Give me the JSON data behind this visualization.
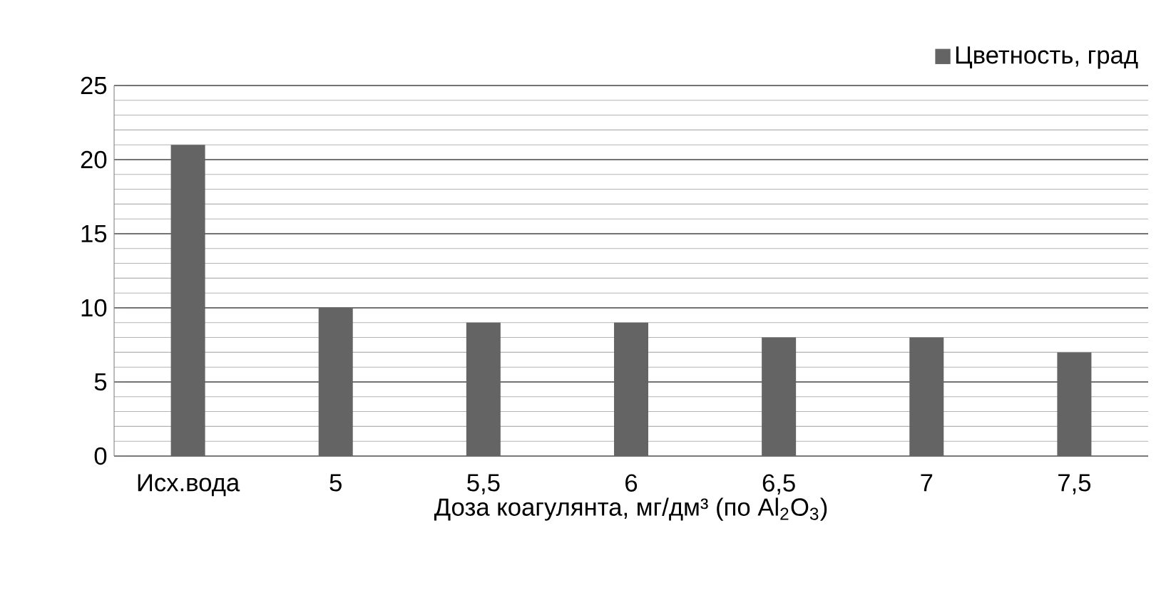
{
  "chart_data": {
    "type": "bar",
    "xlabel": "Доза коагулянта,  мг/дм³ (по Al$_{2}$O$_{3}$)",
    "categories": [
      "Исх.вода",
      "5",
      "5,5",
      "6",
      "6,5",
      "7",
      "7,5"
    ],
    "series": [
      {
        "name": "Цветность, град",
        "color": "#646464",
        "values": [
          21,
          10,
          9,
          9,
          8,
          8,
          7
        ]
      }
    ],
    "ylim": [
      0,
      25
    ],
    "yticks": [
      0,
      5,
      10,
      15,
      20,
      25
    ],
    "grid": "y",
    "legend": "top right"
  }
}
